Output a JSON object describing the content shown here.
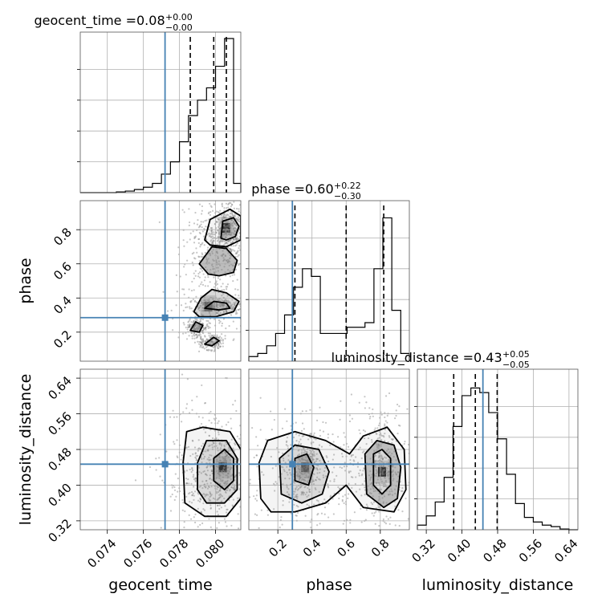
{
  "chart_data": {
    "type": "corner",
    "parameters": [
      {
        "name": "geocent_time",
        "title_prefix": "geocent_time = ",
        "median": "0.08",
        "plus": "+0.00",
        "minus": "−0.00",
        "range": [
          0.0725,
          0.0814
        ],
        "ticks": [
          0.074,
          0.076,
          0.078,
          0.08
        ],
        "tick_labels": [
          "0.074",
          "0.076",
          "0.078",
          "0.080"
        ],
        "truth": 0.0772,
        "quantiles": [
          0.0786,
          0.0799,
          0.0806
        ],
        "hist_edges": [
          0.0725,
          0.073,
          0.0735,
          0.074,
          0.0745,
          0.075,
          0.0755,
          0.076,
          0.0765,
          0.077,
          0.0775,
          0.078,
          0.0785,
          0.079,
          0.0795,
          0.08,
          0.0805,
          0.081,
          0.0814
        ],
        "hist_values": [
          0.0,
          0.0,
          0.0,
          0.0,
          0.005,
          0.01,
          0.02,
          0.035,
          0.06,
          0.12,
          0.2,
          0.33,
          0.5,
          0.6,
          0.68,
          0.82,
          1.0,
          0.06
        ]
      },
      {
        "name": "phase",
        "title_prefix": "phase = ",
        "median": "0.60",
        "plus": "+0.22",
        "minus": "−0.30",
        "range": [
          0.03,
          0.97
        ],
        "ticks": [
          0.2,
          0.4,
          0.6,
          0.8
        ],
        "tick_labels": [
          "0.2",
          "0.4",
          "0.6",
          "0.8"
        ],
        "truth": 0.285,
        "quantiles": [
          0.3,
          0.6,
          0.82
        ],
        "hist_edges": [
          0.03,
          0.0823,
          0.1347,
          0.187,
          0.2393,
          0.2917,
          0.344,
          0.3963,
          0.4487,
          0.501,
          0.5533,
          0.6057,
          0.658,
          0.7103,
          0.7627,
          0.815,
          0.8673,
          0.9197,
          0.97
        ],
        "hist_values": [
          0.03,
          0.05,
          0.1,
          0.18,
          0.3,
          0.48,
          0.6,
          0.55,
          0.18,
          0.18,
          0.18,
          0.22,
          0.22,
          0.25,
          0.6,
          0.93,
          0.33,
          0.05
        ]
      },
      {
        "name": "luminosity_distance",
        "title_prefix": "luminosity_distance = ",
        "median": "0.43",
        "plus": "+0.05",
        "minus": "−0.05",
        "range": [
          0.3,
          0.66
        ],
        "ticks": [
          0.32,
          0.4,
          0.48,
          0.56,
          0.64
        ],
        "tick_labels": [
          "0.32",
          "0.40",
          "0.48",
          "0.56",
          "0.64"
        ],
        "truth": 0.447,
        "quantiles": [
          0.3815,
          0.43,
          0.479
        ],
        "hist_edges": [
          0.3,
          0.32,
          0.34,
          0.36,
          0.38,
          0.4,
          0.42,
          0.44,
          0.46,
          0.48,
          0.5,
          0.52,
          0.54,
          0.56,
          0.58,
          0.6,
          0.62,
          0.64,
          0.66
        ],
        "hist_values": [
          0.03,
          0.09,
          0.18,
          0.34,
          0.67,
          0.87,
          0.92,
          0.89,
          0.76,
          0.59,
          0.36,
          0.17,
          0.08,
          0.05,
          0.03,
          0.02,
          0.005,
          0.0
        ]
      }
    ],
    "pairs": [
      {
        "x_param": "geocent_time",
        "y_param": "phase",
        "truth": [
          0.0772,
          0.285
        ],
        "density_peaks": [
          {
            "x": 0.0806,
            "y": 0.81,
            "weight": 1.0
          },
          {
            "x": 0.0796,
            "y": 0.35,
            "weight": 0.45
          }
        ],
        "contours": [
          [
            [
              0.0794,
              0.74
            ],
            [
              0.0797,
              0.86
            ],
            [
              0.0808,
              0.92
            ],
            [
              0.0814,
              0.88
            ],
            [
              0.0814,
              0.74
            ],
            [
              0.0806,
              0.7
            ],
            [
              0.0797,
              0.71
            ]
          ],
          [
            [
              0.0803,
              0.75
            ],
            [
              0.0804,
              0.85
            ],
            [
              0.081,
              0.87
            ],
            [
              0.0813,
              0.82
            ],
            [
              0.0811,
              0.76
            ],
            [
              0.0806,
              0.74
            ]
          ],
          [
            [
              0.0791,
              0.6
            ],
            [
              0.0798,
              0.7
            ],
            [
              0.0806,
              0.69
            ],
            [
              0.0812,
              0.62
            ],
            [
              0.081,
              0.55
            ],
            [
              0.0802,
              0.53
            ],
            [
              0.0796,
              0.54
            ]
          ],
          [
            [
              0.0788,
              0.32
            ],
            [
              0.0792,
              0.4
            ],
            [
              0.0798,
              0.45
            ],
            [
              0.0806,
              0.43
            ],
            [
              0.0813,
              0.38
            ],
            [
              0.081,
              0.32
            ],
            [
              0.08,
              0.29
            ],
            [
              0.0791,
              0.29
            ]
          ],
          [
            [
              0.0794,
              0.34
            ],
            [
              0.0799,
              0.38
            ],
            [
              0.0806,
              0.37
            ],
            [
              0.0808,
              0.34
            ],
            [
              0.0802,
              0.33
            ]
          ],
          [
            [
              0.0794,
              0.13
            ],
            [
              0.0799,
              0.17
            ],
            [
              0.0802,
              0.15
            ],
            [
              0.0798,
              0.12
            ]
          ],
          [
            [
              0.0786,
              0.21
            ],
            [
              0.0789,
              0.26
            ],
            [
              0.0793,
              0.24
            ],
            [
              0.0791,
              0.2
            ]
          ]
        ]
      },
      {
        "x_param": "geocent_time",
        "y_param": "luminosity_distance",
        "truth": [
          0.0772,
          0.447
        ],
        "density_peaks": [
          {
            "x": 0.0804,
            "y": 0.44,
            "weight": 1.0
          }
        ],
        "contours": [
          [
            [
              0.0783,
              0.36
            ],
            [
              0.0782,
              0.45
            ],
            [
              0.0784,
              0.52
            ],
            [
              0.0793,
              0.53
            ],
            [
              0.0808,
              0.52
            ],
            [
              0.0814,
              0.48
            ],
            [
              0.0814,
              0.37
            ],
            [
              0.0806,
              0.33
            ],
            [
              0.0794,
              0.33
            ]
          ],
          [
            [
              0.079,
              0.39
            ],
            [
              0.079,
              0.45
            ],
            [
              0.0795,
              0.5
            ],
            [
              0.0806,
              0.5
            ],
            [
              0.0812,
              0.46
            ],
            [
              0.0812,
              0.39
            ],
            [
              0.0805,
              0.36
            ],
            [
              0.0795,
              0.36
            ]
          ],
          [
            [
              0.0799,
              0.41
            ],
            [
              0.0799,
              0.46
            ],
            [
              0.0805,
              0.48
            ],
            [
              0.081,
              0.46
            ],
            [
              0.081,
              0.41
            ],
            [
              0.0805,
              0.39
            ]
          ]
        ]
      },
      {
        "x_param": "phase",
        "y_param": "luminosity_distance",
        "truth": [
          0.285,
          0.447
        ],
        "density_peaks": [
          {
            "x": 0.36,
            "y": 0.44,
            "weight": 0.55
          },
          {
            "x": 0.81,
            "y": 0.43,
            "weight": 1.0
          }
        ],
        "contours": [
          [
            [
              0.1,
              0.37
            ],
            [
              0.09,
              0.45
            ],
            [
              0.14,
              0.5
            ],
            [
              0.3,
              0.52
            ],
            [
              0.48,
              0.5
            ],
            [
              0.62,
              0.47
            ],
            [
              0.7,
              0.51
            ],
            [
              0.84,
              0.53
            ],
            [
              0.94,
              0.48
            ],
            [
              0.95,
              0.39
            ],
            [
              0.88,
              0.34
            ],
            [
              0.7,
              0.35
            ],
            [
              0.6,
              0.4
            ],
            [
              0.48,
              0.36
            ],
            [
              0.3,
              0.34
            ],
            [
              0.16,
              0.34
            ]
          ],
          [
            [
              0.22,
              0.38
            ],
            [
              0.21,
              0.46
            ],
            [
              0.3,
              0.49
            ],
            [
              0.44,
              0.48
            ],
            [
              0.5,
              0.43
            ],
            [
              0.46,
              0.38
            ],
            [
              0.34,
              0.36
            ]
          ],
          [
            [
              0.72,
              0.38
            ],
            [
              0.71,
              0.47
            ],
            [
              0.78,
              0.5
            ],
            [
              0.88,
              0.49
            ],
            [
              0.92,
              0.44
            ],
            [
              0.9,
              0.37
            ],
            [
              0.82,
              0.35
            ]
          ],
          [
            [
              0.76,
              0.4
            ],
            [
              0.76,
              0.47
            ],
            [
              0.81,
              0.48
            ],
            [
              0.86,
              0.46
            ],
            [
              0.86,
              0.4
            ],
            [
              0.81,
              0.38
            ]
          ],
          [
            [
              0.3,
              0.41
            ],
            [
              0.3,
              0.46
            ],
            [
              0.37,
              0.47
            ],
            [
              0.41,
              0.44
            ],
            [
              0.38,
              0.4
            ]
          ]
        ]
      }
    ],
    "colors": {
      "truth": "#4682b4",
      "lines": "#000000",
      "points": "#808080",
      "grid": "#b0b0b0"
    }
  }
}
